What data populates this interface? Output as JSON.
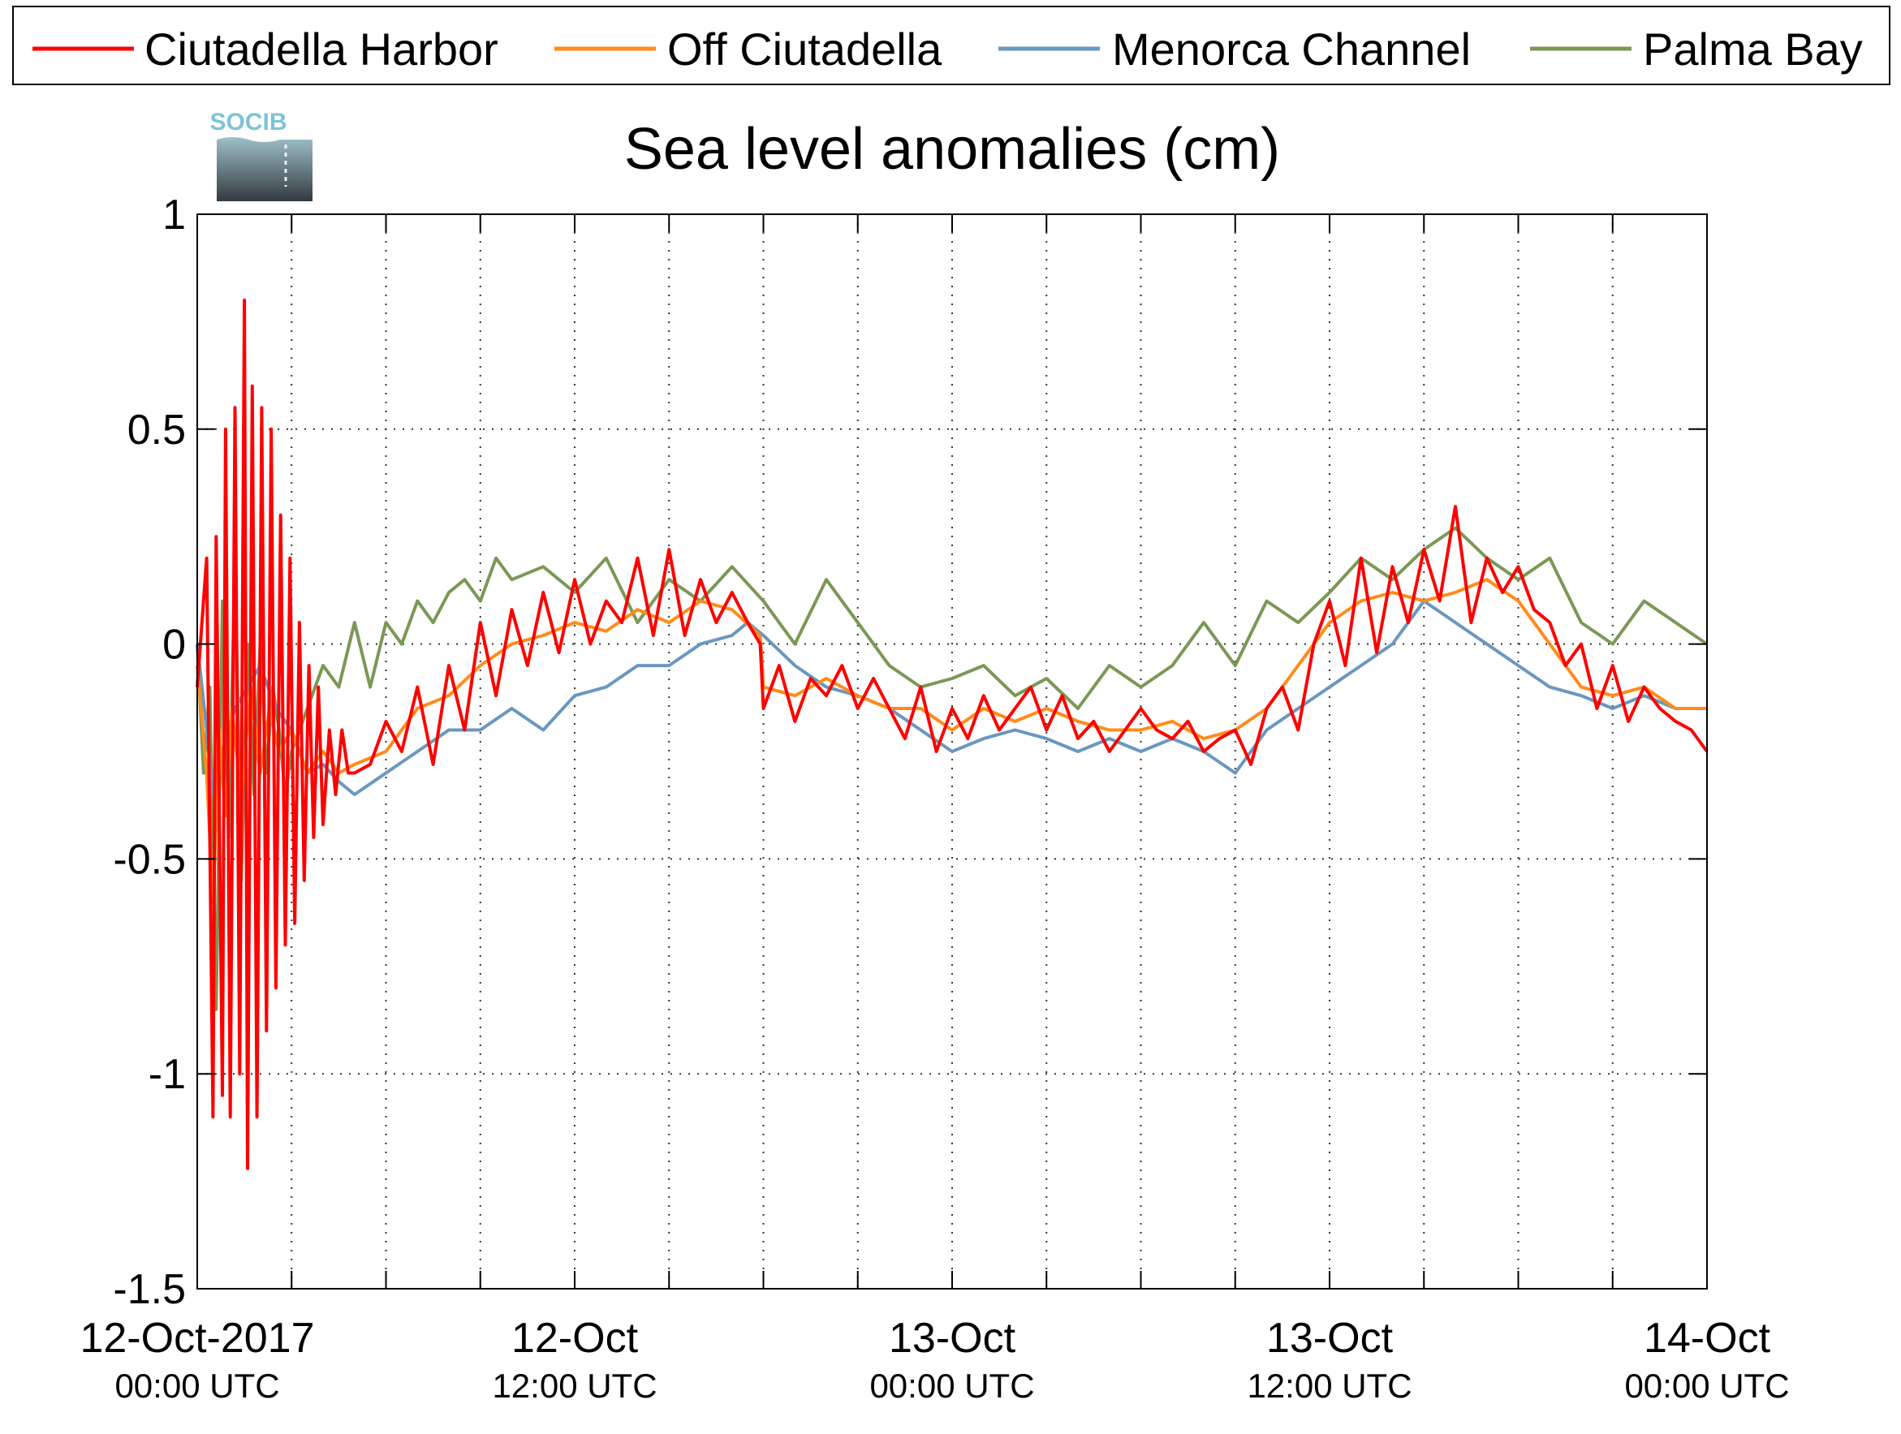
{
  "logo": {
    "text": "SOCIB"
  },
  "chart_data": {
    "type": "line",
    "title": "Sea level anomalies (cm)",
    "xlabel": "",
    "ylabel": "",
    "ylim": [
      -1.5,
      1
    ],
    "xlim_hours": [
      0,
      48
    ],
    "grid": true,
    "legend_position": "top",
    "y_ticks": [
      {
        "value": 1,
        "label": "1"
      },
      {
        "value": 0.5,
        "label": "0.5"
      },
      {
        "value": 0,
        "label": "0"
      },
      {
        "value": -0.5,
        "label": "-0.5"
      },
      {
        "value": -1,
        "label": "-1"
      },
      {
        "value": -1.5,
        "label": "-1.5"
      }
    ],
    "x_ticks": [
      {
        "value": 0,
        "label": "12-Oct-2017",
        "sub": "00:00 UTC"
      },
      {
        "value": 12,
        "label": "12-Oct",
        "sub": "12:00 UTC"
      },
      {
        "value": 24,
        "label": "13-Oct",
        "sub": "00:00 UTC"
      },
      {
        "value": 36,
        "label": "13-Oct",
        "sub": "12:00 UTC"
      },
      {
        "value": 48,
        "label": "14-Oct",
        "sub": "00:00 UTC"
      }
    ],
    "x_minor_ticks": [
      3,
      6,
      9,
      15,
      18,
      21,
      27,
      30,
      33,
      39,
      42,
      45
    ],
    "series": [
      {
        "name": "Ciutadella Harbor",
        "color": "#ff0000",
        "x": [
          0,
          0.3,
          0.5,
          0.6,
          0.8,
          0.9,
          1.05,
          1.2,
          1.35,
          1.5,
          1.6,
          1.75,
          1.9,
          2.05,
          2.2,
          2.35,
          2.5,
          2.65,
          2.8,
          2.95,
          3.1,
          3.25,
          3.4,
          3.55,
          3.7,
          3.85,
          4.0,
          4.2,
          4.4,
          4.6,
          4.8,
          5.0,
          5.5,
          6.0,
          6.5,
          7.0,
          7.5,
          8.0,
          8.5,
          9.0,
          9.5,
          10.0,
          10.5,
          11.0,
          11.5,
          12.0,
          12.5,
          13.0,
          13.5,
          14.0,
          14.5,
          15.0,
          15.5,
          16.0,
          16.5,
          17.0,
          17.5,
          17.9,
          18.0,
          18.5,
          19.0,
          19.5,
          20.0,
          20.5,
          21.0,
          21.5,
          22.0,
          22.5,
          23.0,
          23.5,
          24.0,
          24.5,
          25.0,
          25.5,
          26.0,
          26.5,
          27.0,
          27.5,
          28.0,
          28.5,
          29.0,
          29.5,
          30.0,
          30.5,
          31.0,
          31.5,
          32.0,
          32.5,
          33.0,
          33.5,
          34.0,
          34.5,
          35.0,
          35.5,
          36.0,
          36.5,
          37.0,
          37.5,
          38.0,
          38.5,
          39.0,
          39.5,
          40.0,
          40.5,
          41.0,
          41.5,
          42.0,
          42.5,
          43.0,
          43.5,
          44.0,
          44.5,
          45.0,
          45.5,
          46.0,
          46.5,
          47.0,
          47.5,
          48.0
        ],
        "y": [
          -0.1,
          0.2,
          -1.1,
          0.25,
          -1.05,
          0.5,
          -1.1,
          0.55,
          -1.0,
          0.8,
          -1.22,
          0.6,
          -1.1,
          0.55,
          -0.9,
          0.5,
          -0.8,
          0.3,
          -0.7,
          0.2,
          -0.65,
          0.05,
          -0.55,
          -0.05,
          -0.45,
          -0.1,
          -0.42,
          -0.2,
          -0.35,
          -0.2,
          -0.3,
          -0.3,
          -0.28,
          -0.18,
          -0.25,
          -0.1,
          -0.28,
          -0.05,
          -0.2,
          0.05,
          -0.12,
          0.08,
          -0.05,
          0.12,
          -0.02,
          0.15,
          0.0,
          0.1,
          0.05,
          0.2,
          0.02,
          0.22,
          0.02,
          0.15,
          0.05,
          0.12,
          0.05,
          0.0,
          -0.15,
          -0.05,
          -0.18,
          -0.08,
          -0.12,
          -0.05,
          -0.15,
          -0.08,
          -0.15,
          -0.22,
          -0.1,
          -0.25,
          -0.15,
          -0.22,
          -0.12,
          -0.2,
          -0.15,
          -0.1,
          -0.2,
          -0.12,
          -0.22,
          -0.18,
          -0.25,
          -0.2,
          -0.15,
          -0.2,
          -0.22,
          -0.18,
          -0.25,
          -0.22,
          -0.2,
          -0.28,
          -0.15,
          -0.1,
          -0.2,
          0.0,
          0.1,
          -0.05,
          0.2,
          -0.02,
          0.18,
          0.05,
          0.22,
          0.1,
          0.32,
          0.05,
          0.2,
          0.12,
          0.18,
          0.08,
          0.05,
          -0.05,
          0.0,
          -0.15,
          -0.05,
          -0.18,
          -0.1,
          -0.15,
          -0.18,
          -0.2,
          -0.25
        ]
      },
      {
        "name": "Off Ciutadella",
        "color": "#ff8c1a",
        "x": [
          0,
          0.3,
          0.5,
          0.7,
          0.9,
          1.1,
          1.4,
          1.7,
          2.0,
          2.3,
          2.6,
          3.0,
          3.5,
          4.0,
          4.5,
          5.0,
          6.0,
          7.0,
          8.0,
          9.0,
          10.0,
          11.0,
          12.0,
          13.0,
          14.0,
          15.0,
          16.0,
          17.0,
          17.9,
          18.0,
          19.0,
          20.0,
          21.0,
          22.0,
          23.0,
          24.0,
          25.0,
          26.0,
          27.0,
          28.0,
          29.0,
          30.0,
          31.0,
          32.0,
          33.0,
          34.0,
          35.0,
          36.0,
          37.0,
          38.0,
          39.0,
          40.0,
          41.0,
          42.0,
          43.0,
          44.0,
          45.0,
          46.0,
          47.0,
          48.0
        ],
        "y": [
          -0.05,
          -0.3,
          -0.6,
          -0.2,
          -0.4,
          -0.15,
          -0.35,
          -0.1,
          -0.3,
          -0.15,
          -0.25,
          -0.2,
          -0.3,
          -0.25,
          -0.3,
          -0.28,
          -0.25,
          -0.15,
          -0.12,
          -0.05,
          0.0,
          0.02,
          0.05,
          0.03,
          0.08,
          0.05,
          0.1,
          0.08,
          0.02,
          -0.1,
          -0.12,
          -0.08,
          -0.12,
          -0.15,
          -0.15,
          -0.2,
          -0.15,
          -0.18,
          -0.15,
          -0.18,
          -0.2,
          -0.2,
          -0.18,
          -0.22,
          -0.2,
          -0.15,
          -0.05,
          0.05,
          0.1,
          0.12,
          0.1,
          0.12,
          0.15,
          0.1,
          0.0,
          -0.1,
          -0.12,
          -0.1,
          -0.15,
          -0.15
        ]
      },
      {
        "name": "Menorca Channel",
        "color": "#6a97c0",
        "x": [
          0,
          0.3,
          0.5,
          0.8,
          1.2,
          1.6,
          2.0,
          2.5,
          3.0,
          3.5,
          4.0,
          4.5,
          5.0,
          6.0,
          7.0,
          8.0,
          9.0,
          10.0,
          11.0,
          12.0,
          13.0,
          14.0,
          15.0,
          16.0,
          17.0,
          17.5,
          18.0,
          19.0,
          20.0,
          21.0,
          22.0,
          23.0,
          24.0,
          25.0,
          26.0,
          27.0,
          28.0,
          29.0,
          30.0,
          31.0,
          32.0,
          33.0,
          33.5,
          34.0,
          35.0,
          36.0,
          37.0,
          38.0,
          38.5,
          39.0,
          40.0,
          41.0,
          42.0,
          43.0,
          44.0,
          45.0,
          46.0,
          47.0,
          48.0
        ],
        "y": [
          0.0,
          -0.2,
          -0.35,
          -0.25,
          -0.15,
          -0.1,
          -0.05,
          -0.15,
          -0.2,
          -0.3,
          -0.28,
          -0.32,
          -0.35,
          -0.3,
          -0.25,
          -0.2,
          -0.2,
          -0.15,
          -0.2,
          -0.12,
          -0.1,
          -0.05,
          -0.05,
          0.0,
          0.02,
          0.05,
          0.02,
          -0.05,
          -0.1,
          -0.12,
          -0.15,
          -0.2,
          -0.25,
          -0.22,
          -0.2,
          -0.22,
          -0.25,
          -0.22,
          -0.25,
          -0.22,
          -0.25,
          -0.3,
          -0.25,
          -0.2,
          -0.15,
          -0.1,
          -0.05,
          0.0,
          0.05,
          0.1,
          0.05,
          0.0,
          -0.05,
          -0.1,
          -0.12,
          -0.15,
          -0.12,
          -0.15,
          -0.15
        ]
      },
      {
        "name": "Palma Bay",
        "color": "#7b9855",
        "x": [
          0,
          0.2,
          0.4,
          0.6,
          0.8,
          1.0,
          1.2,
          1.4,
          1.6,
          1.8,
          2.0,
          2.2,
          2.4,
          2.6,
          2.8,
          3.0,
          3.5,
          4.0,
          4.5,
          5.0,
          5.5,
          6.0,
          6.5,
          7.0,
          7.5,
          8.0,
          8.5,
          9.0,
          9.5,
          10.0,
          11.0,
          12.0,
          13.0,
          14.0,
          15.0,
          16.0,
          17.0,
          18.0,
          19.0,
          20.0,
          21.0,
          22.0,
          23.0,
          24.0,
          25.0,
          26.0,
          27.0,
          28.0,
          29.0,
          30.0,
          31.0,
          32.0,
          33.0,
          34.0,
          35.0,
          36.0,
          37.0,
          38.0,
          39.0,
          40.0,
          41.0,
          42.0,
          43.0,
          44.0,
          45.0,
          46.0,
          47.0,
          48.0
        ],
        "y": [
          0.0,
          -0.3,
          -0.1,
          -0.85,
          0.1,
          -0.45,
          0.2,
          -0.55,
          0.0,
          -0.35,
          0.0,
          -0.3,
          -0.1,
          -0.2,
          -0.35,
          -0.25,
          -0.15,
          -0.05,
          -0.1,
          0.05,
          -0.1,
          0.05,
          0.0,
          0.1,
          0.05,
          0.12,
          0.15,
          0.1,
          0.2,
          0.15,
          0.18,
          0.12,
          0.2,
          0.05,
          0.15,
          0.1,
          0.18,
          0.1,
          0.0,
          0.15,
          0.05,
          -0.05,
          -0.1,
          -0.08,
          -0.05,
          -0.12,
          -0.08,
          -0.15,
          -0.05,
          -0.1,
          -0.05,
          0.05,
          -0.05,
          0.1,
          0.05,
          0.12,
          0.2,
          0.15,
          0.22,
          0.27,
          0.2,
          0.15,
          0.2,
          0.05,
          0.0,
          0.1,
          0.05,
          0.0
        ]
      }
    ]
  }
}
